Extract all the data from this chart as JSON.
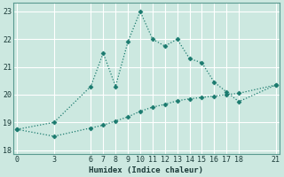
{
  "xlabel": "Humidex (Indice chaleur)",
  "bg_color": "#cce8e0",
  "grid_color": "#b0d8d0",
  "line_color": "#1a7a6e",
  "line1_x": [
    0,
    3,
    6,
    7,
    8,
    9,
    10,
    11,
    12,
    13,
    14,
    15,
    16,
    17,
    18,
    21
  ],
  "line1_y": [
    18.75,
    19.0,
    20.3,
    21.5,
    20.3,
    21.9,
    23.0,
    22.0,
    21.75,
    22.0,
    21.3,
    21.15,
    20.45,
    20.1,
    19.75,
    20.35
  ],
  "line2_x": [
    0,
    3,
    6,
    7,
    8,
    9,
    10,
    11,
    12,
    13,
    14,
    15,
    16,
    17,
    18,
    21
  ],
  "line2_y": [
    18.75,
    18.5,
    18.8,
    18.9,
    19.05,
    19.2,
    19.4,
    19.55,
    19.65,
    19.78,
    19.85,
    19.9,
    19.95,
    20.0,
    20.05,
    20.35
  ],
  "xticks": [
    0,
    3,
    6,
    7,
    8,
    9,
    10,
    11,
    12,
    13,
    14,
    15,
    16,
    17,
    18,
    21
  ],
  "yticks": [
    18,
    19,
    20,
    21,
    22,
    23
  ],
  "xlim": [
    -0.3,
    21.3
  ],
  "ylim": [
    17.85,
    23.3
  ]
}
